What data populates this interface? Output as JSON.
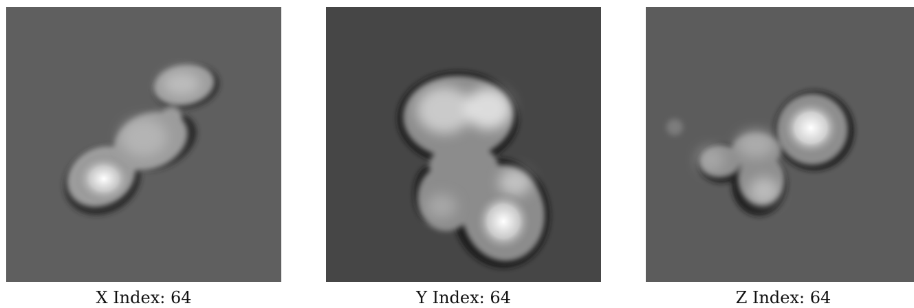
{
  "slices": [
    {
      "caption": "X Index: 64",
      "background": "#5f5f5f"
    },
    {
      "caption": "Y Index: 64",
      "background": "#464646"
    },
    {
      "caption": "Z Index: 64",
      "background": "#5c5c5c"
    }
  ]
}
